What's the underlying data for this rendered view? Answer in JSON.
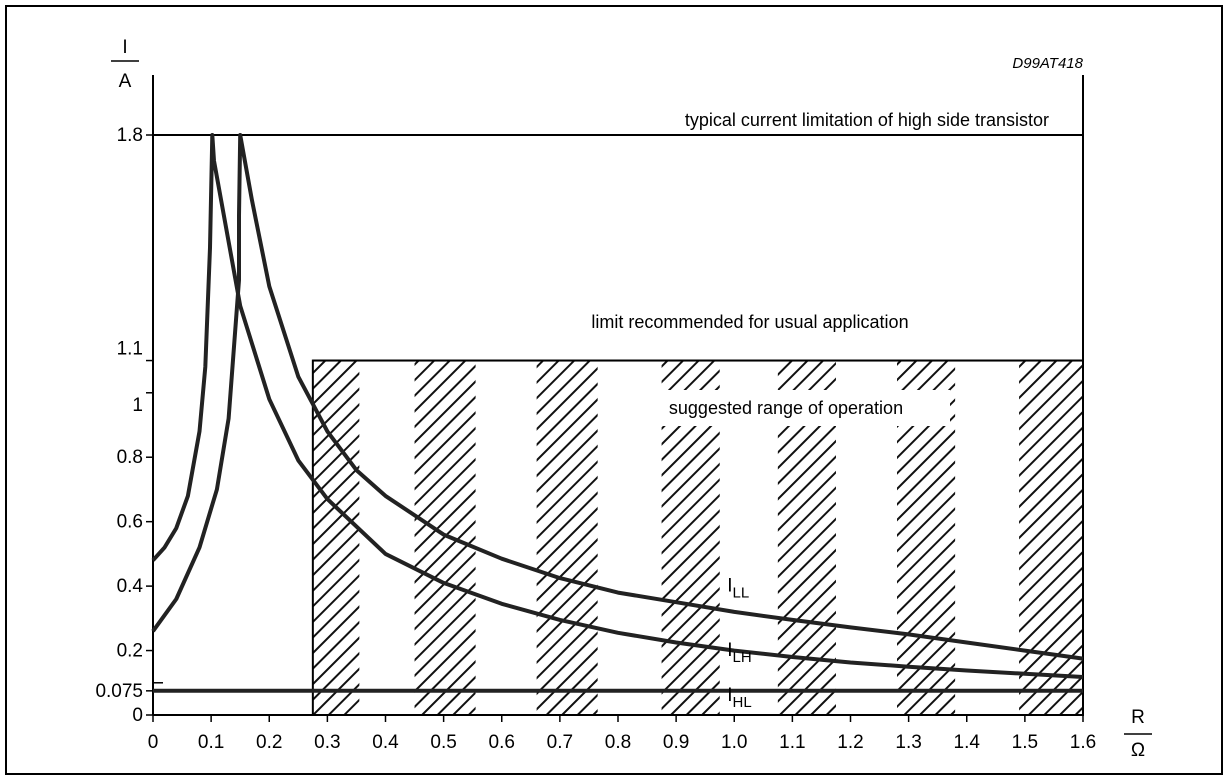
{
  "diagram_code": "D99AT418",
  "y_axis": {
    "unit_num": "I",
    "unit_den": "A"
  },
  "x_axis": {
    "unit_num": "R",
    "unit_den": "Ω"
  },
  "annotations": {
    "high_side_limit": "typical current limitation of high side transistor",
    "recommended_limit": "limit recommended for usual application",
    "suggested_range": "suggested range of operation"
  },
  "chart_data": {
    "type": "line",
    "xlim": [
      0,
      1.6
    ],
    "ylim": [
      0,
      2.0
    ],
    "x_ticks": [
      {
        "v": 0,
        "label": "0"
      },
      {
        "v": 0.1,
        "label": "0.1"
      },
      {
        "v": 0.2,
        "label": "0.2"
      },
      {
        "v": 0.3,
        "label": "0.3"
      },
      {
        "v": 0.4,
        "label": "0.4"
      },
      {
        "v": 0.5,
        "label": "0.5"
      },
      {
        "v": 0.6,
        "label": "0.6"
      },
      {
        "v": 0.7,
        "label": "0.7"
      },
      {
        "v": 0.8,
        "label": "0.8"
      },
      {
        "v": 0.9,
        "label": "0.9"
      },
      {
        "v": 1.0,
        "label": "1.0"
      },
      {
        "v": 1.1,
        "label": "1.1"
      },
      {
        "v": 1.2,
        "label": "1.2"
      },
      {
        "v": 1.3,
        "label": "1.3"
      },
      {
        "v": 1.4,
        "label": "1.4"
      },
      {
        "v": 1.5,
        "label": "1.5"
      },
      {
        "v": 1.6,
        "label": "1.6"
      }
    ],
    "y_ticks": [
      {
        "v": 0,
        "label": "0"
      },
      {
        "v": 0.075,
        "label": "0.075"
      },
      {
        "v": 0.2,
        "label": "0.2"
      },
      {
        "v": 0.4,
        "label": "0.4"
      },
      {
        "v": 0.6,
        "label": "0.6"
      },
      {
        "v": 0.8,
        "label": "0.8"
      },
      {
        "v": 1.0,
        "label": "1"
      },
      {
        "v": 1.1,
        "label": "1.1"
      },
      {
        "v": 1.8,
        "label": "1.8"
      }
    ],
    "y_minor_ticks": [
      0.1
    ],
    "reference_lines": {
      "high_side_limit": 1.8,
      "recommended_limit": 1.1
    },
    "range_region": {
      "x_min": 0.275,
      "x_max": 1.6,
      "y_min": 0,
      "y_max": 1.1
    },
    "hatch_bands": [
      [
        0.275,
        0.355
      ],
      [
        0.45,
        0.555
      ],
      [
        0.66,
        0.765
      ],
      [
        0.875,
        0.975
      ],
      [
        1.075,
        1.175
      ],
      [
        1.28,
        1.38
      ],
      [
        1.49,
        1.6
      ]
    ],
    "series": [
      {
        "name_main": "I",
        "name_sub": "LL",
        "label_x": 1.0,
        "label_y": 0.34,
        "points": [
          [
            0,
            0.48
          ],
          [
            0.02,
            0.52
          ],
          [
            0.04,
            0.58
          ],
          [
            0.06,
            0.68
          ],
          [
            0.08,
            0.88
          ],
          [
            0.09,
            1.08
          ],
          [
            0.098,
            1.45
          ],
          [
            0.102,
            1.8
          ],
          [
            0.105,
            1.72
          ],
          [
            0.15,
            1.27
          ],
          [
            0.2,
            0.98
          ],
          [
            0.25,
            0.79
          ],
          [
            0.3,
            0.67
          ],
          [
            0.4,
            0.5
          ],
          [
            0.5,
            0.41
          ],
          [
            0.6,
            0.345
          ],
          [
            0.7,
            0.295
          ],
          [
            0.8,
            0.255
          ],
          [
            0.9,
            0.225
          ],
          [
            1.0,
            0.2
          ],
          [
            1.1,
            0.18
          ],
          [
            1.2,
            0.163
          ],
          [
            1.3,
            0.15
          ],
          [
            1.4,
            0.138
          ],
          [
            1.5,
            0.128
          ],
          [
            1.6,
            0.118
          ]
        ]
      },
      {
        "name_main": "I",
        "name_sub": "LH",
        "label_x": 1.0,
        "label_y": 0.14,
        "points": [
          [
            0,
            0.26
          ],
          [
            0.04,
            0.36
          ],
          [
            0.08,
            0.52
          ],
          [
            0.11,
            0.7
          ],
          [
            0.13,
            0.92
          ],
          [
            0.148,
            1.35
          ],
          [
            0.148,
            1.55
          ],
          [
            0.15,
            1.8
          ],
          [
            0.17,
            1.6
          ],
          [
            0.2,
            1.33
          ],
          [
            0.25,
            1.05
          ],
          [
            0.3,
            0.88
          ],
          [
            0.35,
            0.76
          ],
          [
            0.4,
            0.68
          ],
          [
            0.5,
            0.56
          ],
          [
            0.6,
            0.485
          ],
          [
            0.7,
            0.425
          ],
          [
            0.8,
            0.38
          ],
          [
            0.9,
            0.35
          ],
          [
            1.0,
            0.32
          ],
          [
            1.1,
            0.295
          ],
          [
            1.2,
            0.272
          ],
          [
            1.3,
            0.25
          ],
          [
            1.4,
            0.225
          ],
          [
            1.5,
            0.2
          ],
          [
            1.6,
            0.175
          ]
        ]
      },
      {
        "name_main": "I",
        "name_sub": "HL",
        "label_x": 1.0,
        "label_y": 0.0,
        "points": [
          [
            0,
            0.075
          ],
          [
            1.6,
            0.075
          ]
        ]
      }
    ]
  }
}
